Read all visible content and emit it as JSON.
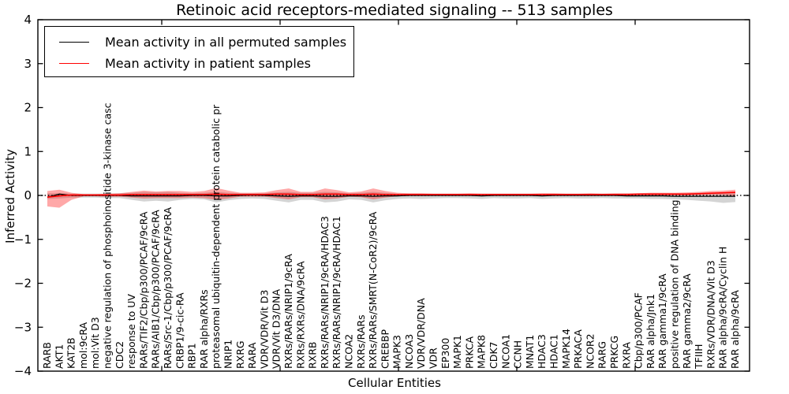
{
  "title": "Retinoic acid receptors-mediated signaling -- 513 samples",
  "axes": {
    "x_label": "Cellular Entities",
    "y_label": "Inferred Activity",
    "y_tick_labels": [
      "4",
      "3",
      "2",
      "1",
      "0",
      "−1",
      "−2",
      "−3",
      "−4"
    ],
    "y_ticks": [
      4,
      3,
      2,
      1,
      0,
      -1,
      -2,
      -3,
      -4
    ]
  },
  "legend": {
    "items": [
      {
        "label": "Mean activity in all permuted samples",
        "color": "#000000"
      },
      {
        "label": "Mean activity in patient samples",
        "color": "#ff0000"
      }
    ]
  },
  "colors": {
    "permuted_line": "#000000",
    "patient_line": "#ff0000",
    "permuted_band": "#d3d3d3",
    "patient_band": "#f08080",
    "zero_line": "#000000",
    "frame": "#000000"
  },
  "chart_data": {
    "type": "line",
    "title": "Retinoic acid receptors-mediated signaling -- 513 samples",
    "xlabel": "Cellular Entities",
    "ylabel": "Inferred Activity",
    "ylim": [
      -4,
      4
    ],
    "grid": false,
    "legend_position": "upper left",
    "zero_reference_line": "dotted",
    "categories": [
      "RARB",
      "AKT1",
      "KAT2B",
      "mol:9cRA",
      "mol:Vit D3",
      "negative regulation of phosphoinositide 3-kinase casc",
      "CDC2",
      "response to UV",
      "RARs/TIF2/Cbp/p300/PCAF/9cRA",
      "RARs/AIB1/Cbp/p300/PCAF/9cRA",
      "RARs/Src-1/Cbp/p300/PCAF/9cRA",
      "CRBP1/9-cic-RA",
      "RBP1",
      "RAR alpha/RXRs",
      "proteasomal ubiquitin-dependent protein catabolic pr",
      "NRIP1",
      "RXRG",
      "RARA",
      "VDR/VDR/Vit D3",
      "VDR/Vit D3/DNA",
      "RXRs/RARs/NRIP1/9cRA",
      "RXRs/RXRs/DNA/9cRA",
      "RXRB",
      "RXRs/RARs/NRIP1/9cRA/HDAC3",
      "RXRs/RARs/NRIP1/9cRA/HDAC1",
      "NCOA2",
      "RXRs/RARs",
      "RXRs/RARs/SMRT(N-CoR2)/9cRA",
      "CREBBP",
      "MAPK3",
      "NCOA3",
      "VDR/VDR/DNA",
      "VDR",
      "EP300",
      "MAPK1",
      "PRKCA",
      "MAPK8",
      "CDK7",
      "NCOA1",
      "CCNH",
      "MNAT1",
      "HDAC3",
      "HDAC1",
      "MAPK14",
      "PRKACA",
      "NCOR2",
      "RARG",
      "PRKCG",
      "RXRA",
      "Cbp/p300/PCAF",
      "RAR alpha/Jnk1",
      "RAR gamma1/9cRA",
      "positive regulation of DNA binding",
      "RAR gamma2/9cRA",
      "TFIIH",
      "RXRs/VDR/DNA/Vit D3",
      "RAR alpha/9cRA/Cyclin H",
      "RAR alpha/9cRA"
    ],
    "series": [
      {
        "name": "Mean activity in all permuted samples",
        "color": "#000000",
        "values": [
          -0.04,
          0.03,
          0.0,
          0.0,
          0.0,
          0.0,
          0.0,
          -0.01,
          -0.01,
          -0.01,
          -0.01,
          -0.01,
          0.0,
          0.0,
          -0.01,
          -0.01,
          0.0,
          0.01,
          0.0,
          -0.01,
          -0.02,
          -0.01,
          -0.01,
          -0.02,
          -0.02,
          -0.01,
          -0.01,
          -0.02,
          -0.01,
          -0.01,
          0.0,
          0.0,
          0.0,
          0.0,
          0.0,
          0.0,
          -0.01,
          0.0,
          0.0,
          0.0,
          0.0,
          -0.01,
          0.0,
          0.0,
          0.0,
          0.0,
          0.0,
          0.0,
          -0.01,
          -0.01,
          -0.01,
          -0.01,
          -0.02,
          -0.02,
          -0.02,
          -0.02,
          -0.02,
          -0.02
        ],
        "band_upper": [
          0.05,
          0.05,
          0.04,
          0.04,
          0.04,
          0.04,
          0.05,
          0.06,
          0.08,
          0.07,
          0.08,
          0.06,
          0.05,
          0.06,
          0.08,
          0.06,
          0.05,
          0.05,
          0.05,
          0.07,
          0.08,
          0.06,
          0.06,
          0.08,
          0.07,
          0.05,
          0.06,
          0.08,
          0.06,
          0.04,
          0.04,
          0.04,
          0.04,
          0.04,
          0.04,
          0.04,
          0.04,
          0.04,
          0.04,
          0.04,
          0.04,
          0.04,
          0.04,
          0.04,
          0.04,
          0.04,
          0.04,
          0.04,
          0.04,
          0.04,
          0.05,
          0.05,
          0.05,
          0.05,
          0.06,
          0.06,
          0.07,
          0.07
        ],
        "band_lower": [
          -0.08,
          -0.07,
          -0.05,
          -0.05,
          -0.05,
          -0.06,
          -0.06,
          -0.1,
          -0.14,
          -0.12,
          -0.14,
          -0.1,
          -0.08,
          -0.09,
          -0.16,
          -0.11,
          -0.08,
          -0.07,
          -0.08,
          -0.12,
          -0.16,
          -0.1,
          -0.1,
          -0.16,
          -0.14,
          -0.09,
          -0.1,
          -0.16,
          -0.11,
          -0.08,
          -0.07,
          -0.08,
          -0.07,
          -0.06,
          -0.06,
          -0.07,
          -0.08,
          -0.06,
          -0.07,
          -0.07,
          -0.06,
          -0.08,
          -0.07,
          -0.06,
          -0.07,
          -0.07,
          -0.06,
          -0.07,
          -0.07,
          -0.07,
          -0.08,
          -0.08,
          -0.09,
          -0.1,
          -0.12,
          -0.14,
          -0.17,
          -0.15
        ]
      },
      {
        "name": "Mean activity in patient samples",
        "color": "#ff0000",
        "values": [
          -0.04,
          -0.01,
          0.01,
          0.01,
          0.01,
          0.01,
          0.01,
          0.02,
          0.02,
          0.02,
          0.02,
          0.02,
          0.02,
          0.02,
          0.03,
          0.02,
          0.02,
          0.02,
          0.02,
          0.03,
          0.03,
          0.02,
          0.02,
          0.03,
          0.03,
          0.02,
          0.02,
          0.03,
          0.02,
          0.02,
          0.02,
          0.02,
          0.02,
          0.02,
          0.02,
          0.02,
          0.02,
          0.02,
          0.02,
          0.02,
          0.02,
          0.02,
          0.02,
          0.02,
          0.02,
          0.02,
          0.02,
          0.02,
          0.02,
          0.03,
          0.03,
          0.03,
          0.03,
          0.03,
          0.04,
          0.05,
          0.06,
          0.07
        ],
        "band_upper": [
          0.1,
          0.13,
          0.06,
          0.03,
          0.03,
          0.04,
          0.05,
          0.08,
          0.11,
          0.09,
          0.1,
          0.1,
          0.08,
          0.1,
          0.17,
          0.11,
          0.06,
          0.06,
          0.07,
          0.12,
          0.16,
          0.08,
          0.08,
          0.16,
          0.12,
          0.07,
          0.09,
          0.16,
          0.1,
          0.06,
          0.05,
          0.05,
          0.04,
          0.04,
          0.04,
          0.05,
          0.04,
          0.04,
          0.04,
          0.04,
          0.04,
          0.05,
          0.05,
          0.04,
          0.04,
          0.05,
          0.04,
          0.05,
          0.05,
          0.05,
          0.06,
          0.06,
          0.06,
          0.07,
          0.08,
          0.1,
          0.11,
          0.13
        ],
        "band_lower": [
          -0.25,
          -0.28,
          -0.1,
          -0.02,
          -0.02,
          -0.03,
          -0.03,
          -0.05,
          -0.07,
          -0.06,
          -0.06,
          -0.06,
          -0.05,
          -0.06,
          -0.1,
          -0.07,
          -0.03,
          -0.03,
          -0.03,
          -0.06,
          -0.09,
          -0.04,
          -0.04,
          -0.09,
          -0.07,
          -0.03,
          -0.04,
          -0.09,
          -0.05,
          -0.02,
          -0.01,
          -0.01,
          -0.01,
          0.0,
          0.0,
          -0.01,
          -0.01,
          0.0,
          0.0,
          -0.01,
          0.0,
          -0.01,
          -0.01,
          0.0,
          0.0,
          -0.01,
          0.0,
          0.0,
          -0.01,
          0.0,
          0.0,
          0.0,
          0.0,
          0.0,
          0.01,
          0.01,
          0.01,
          -0.02
        ]
      }
    ]
  }
}
